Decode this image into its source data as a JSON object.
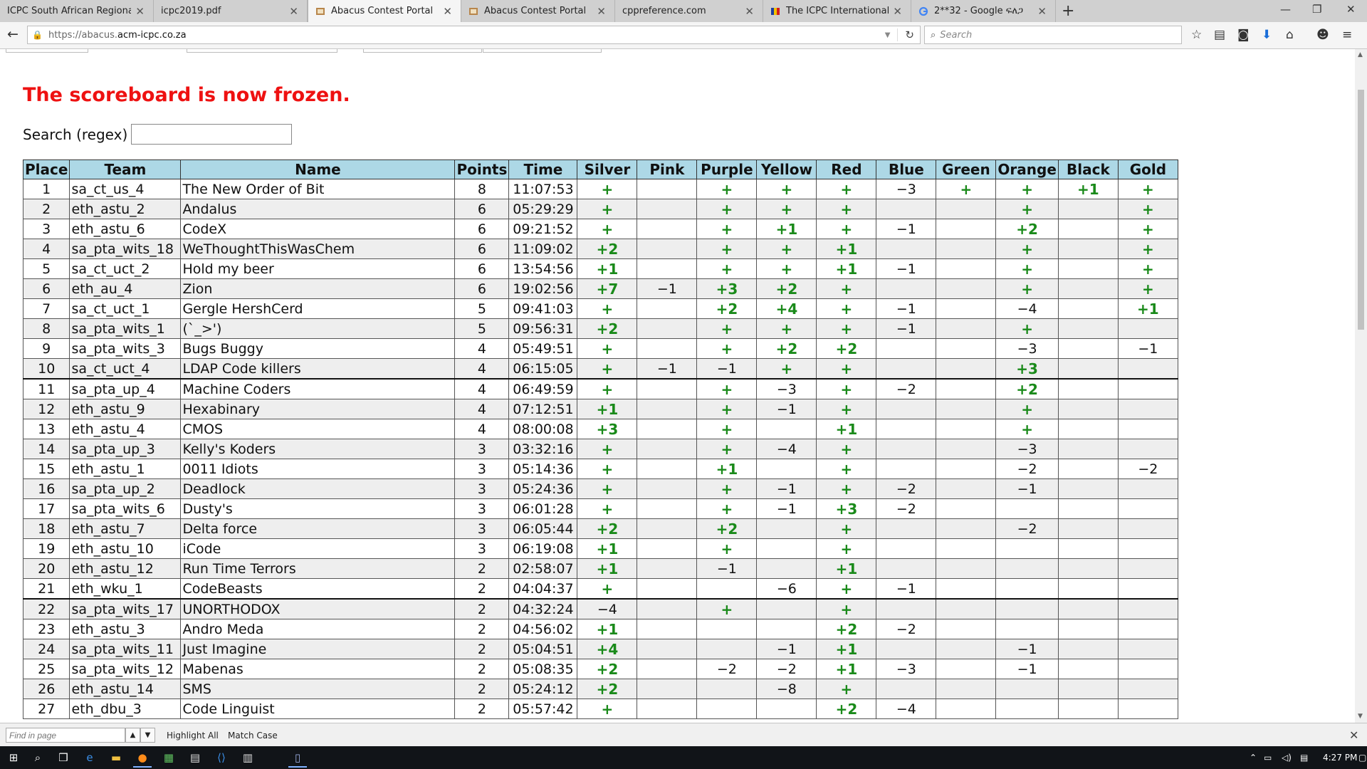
{
  "browser": {
    "tabs": [
      {
        "title": "ICPC South African Regional",
        "active": false
      },
      {
        "title": "icpc2019.pdf",
        "active": false
      },
      {
        "title": "Abacus Contest Portal",
        "active": true
      },
      {
        "title": "Abacus Contest Portal",
        "active": false
      },
      {
        "title": "cppreference.com",
        "active": false
      },
      {
        "title": "The ICPC International Co...",
        "active": false
      },
      {
        "title": "2**32 - Google ፍለጋ",
        "active": false
      }
    ],
    "url_prefix": "https://abacus.",
    "url_domain": "acm-icpc.co.za",
    "search_placeholder": "Search"
  },
  "page": {
    "frozen_message": "The scoreboard is now frozen.",
    "search_label": "Search (regex)",
    "search_value": ""
  },
  "scoreboard": {
    "headers": [
      "Place",
      "Team",
      "Name",
      "Points",
      "Time",
      "Silver",
      "Pink",
      "Purple",
      "Yellow",
      "Red",
      "Blue",
      "Green",
      "Orange",
      "Black",
      "Gold"
    ],
    "rows": [
      [
        "1",
        "sa_ct_us_4",
        "The New Order of Bit",
        "8",
        "11:07:53",
        "+",
        "",
        "+",
        "+",
        "+",
        "−3",
        "+",
        "+",
        "+1",
        "+"
      ],
      [
        "2",
        "eth_astu_2",
        "Andalus",
        "6",
        "05:29:29",
        "+",
        "",
        "+",
        "+",
        "+",
        "",
        "",
        "+",
        "",
        "+"
      ],
      [
        "3",
        "eth_astu_6",
        "CodeX",
        "6",
        "09:21:52",
        "+",
        "",
        "+",
        "+1",
        "+",
        "−1",
        "",
        "+2",
        "",
        "+"
      ],
      [
        "4",
        "sa_pta_wits_18",
        "WeThoughtThisWasChem",
        "6",
        "11:09:02",
        "+2",
        "",
        "+",
        "+",
        "+1",
        "",
        "",
        "+",
        "",
        "+"
      ],
      [
        "5",
        "sa_ct_uct_2",
        "Hold my beer",
        "6",
        "13:54:56",
        "+1",
        "",
        "+",
        "+",
        "+1",
        "−1",
        "",
        "+",
        "",
        "+"
      ],
      [
        "6",
        "eth_au_4",
        "Zion",
        "6",
        "19:02:56",
        "+7",
        "−1",
        "+3",
        "+2",
        "+",
        "",
        "",
        "+",
        "",
        "+"
      ],
      [
        "7",
        "sa_ct_uct_1",
        "Gergle HershCerd",
        "5",
        "09:41:03",
        "+",
        "",
        "+2",
        "+4",
        "+",
        "−1",
        "",
        "−4",
        "",
        "+1"
      ],
      [
        "8",
        "sa_pta_wits_1",
        "(`_>')",
        "5",
        "09:56:31",
        "+2",
        "",
        "+",
        "+",
        "+",
        "−1",
        "",
        "+",
        "",
        ""
      ],
      [
        "9",
        "sa_pta_wits_3",
        "Bugs Buggy",
        "4",
        "05:49:51",
        "+",
        "",
        "+",
        "+2",
        "+2",
        "",
        "",
        "−3",
        "",
        "−1"
      ],
      [
        "10",
        "sa_ct_uct_4",
        "LDAP Code killers",
        "4",
        "06:15:05",
        "+",
        "−1",
        "−1",
        "+",
        "+",
        "",
        "",
        "+3",
        "",
        ""
      ],
      [
        "11",
        "sa_pta_up_4",
        "Machine Coders",
        "4",
        "06:49:59",
        "+",
        "",
        "+",
        "−3",
        "+",
        "−2",
        "",
        "+2",
        "",
        ""
      ],
      [
        "12",
        "eth_astu_9",
        "Hexabinary",
        "4",
        "07:12:51",
        "+1",
        "",
        "+",
        "−1",
        "+",
        "",
        "",
        "+",
        "",
        ""
      ],
      [
        "13",
        "eth_astu_4",
        "CMOS",
        "4",
        "08:00:08",
        "+3",
        "",
        "+",
        "",
        "+1",
        "",
        "",
        "+",
        "",
        ""
      ],
      [
        "14",
        "sa_pta_up_3",
        "Kelly's Koders",
        "3",
        "03:32:16",
        "+",
        "",
        "+",
        "−4",
        "+",
        "",
        "",
        "−3",
        "",
        ""
      ],
      [
        "15",
        "eth_astu_1",
        "0011 Idiots",
        "3",
        "05:14:36",
        "+",
        "",
        "+1",
        "",
        "+",
        "",
        "",
        "−2",
        "",
        "−2"
      ],
      [
        "16",
        "sa_pta_up_2",
        "Deadlock",
        "3",
        "05:24:36",
        "+",
        "",
        "+",
        "−1",
        "+",
        "−2",
        "",
        "−1",
        "",
        ""
      ],
      [
        "17",
        "sa_pta_wits_6",
        "Dusty's",
        "3",
        "06:01:28",
        "+",
        "",
        "+",
        "−1",
        "+3",
        "−2",
        "",
        "",
        "",
        ""
      ],
      [
        "18",
        "eth_astu_7",
        "Delta force",
        "3",
        "06:05:44",
        "+2",
        "",
        "+2",
        "",
        "+",
        "",
        "",
        "−2",
        "",
        ""
      ],
      [
        "19",
        "eth_astu_10",
        "iCode",
        "3",
        "06:19:08",
        "+1",
        "",
        "+",
        "",
        "+",
        "",
        "",
        "",
        "",
        ""
      ],
      [
        "20",
        "eth_astu_12",
        "Run Time Terrors",
        "2",
        "02:58:07",
        "+1",
        "",
        "−1",
        "",
        "+1",
        "",
        "",
        "",
        "",
        ""
      ],
      [
        "21",
        "eth_wku_1",
        "CodeBeasts",
        "2",
        "04:04:37",
        "+",
        "",
        "",
        "−6",
        "+",
        "−1",
        "",
        "",
        "",
        ""
      ],
      [
        "22",
        "sa_pta_wits_17",
        "UNORTHODOX",
        "2",
        "04:32:24",
        "−4",
        "",
        "+",
        "",
        "+",
        "",
        "",
        "",
        "",
        ""
      ],
      [
        "23",
        "eth_astu_3",
        "Andro Meda",
        "2",
        "04:56:02",
        "+1",
        "",
        "",
        "",
        "+2",
        "−2",
        "",
        "",
        "",
        ""
      ],
      [
        "24",
        "sa_pta_wits_11",
        "Just Imagine",
        "2",
        "05:04:51",
        "+4",
        "",
        "",
        "−1",
        "+1",
        "",
        "",
        "−1",
        "",
        ""
      ],
      [
        "25",
        "sa_pta_wits_12",
        "Mabenas",
        "2",
        "05:08:35",
        "+2",
        "",
        "−2",
        "−2",
        "+1",
        "−3",
        "",
        "−1",
        "",
        ""
      ],
      [
        "26",
        "eth_astu_14",
        "SMS",
        "2",
        "05:24:12",
        "+2",
        "",
        "",
        "−8",
        "+",
        "",
        "",
        "",
        "",
        ""
      ],
      [
        "27",
        "eth_dbu_3",
        "Code Linguist",
        "2",
        "05:57:42",
        "+",
        "",
        "",
        "",
        "+2",
        "−4",
        "",
        "",
        "",
        ""
      ]
    ]
  },
  "findbar": {
    "placeholder": "Find in page",
    "highlight_all": "Highlight All",
    "match_case": "Match Case"
  },
  "taskbar": {
    "clock": "4:27 PM"
  },
  "colors": {
    "frozen_text": "#ee1111",
    "header_bg": "#add8e6",
    "solved": "#1a8a1a",
    "alt_row": "#eeeeee"
  }
}
